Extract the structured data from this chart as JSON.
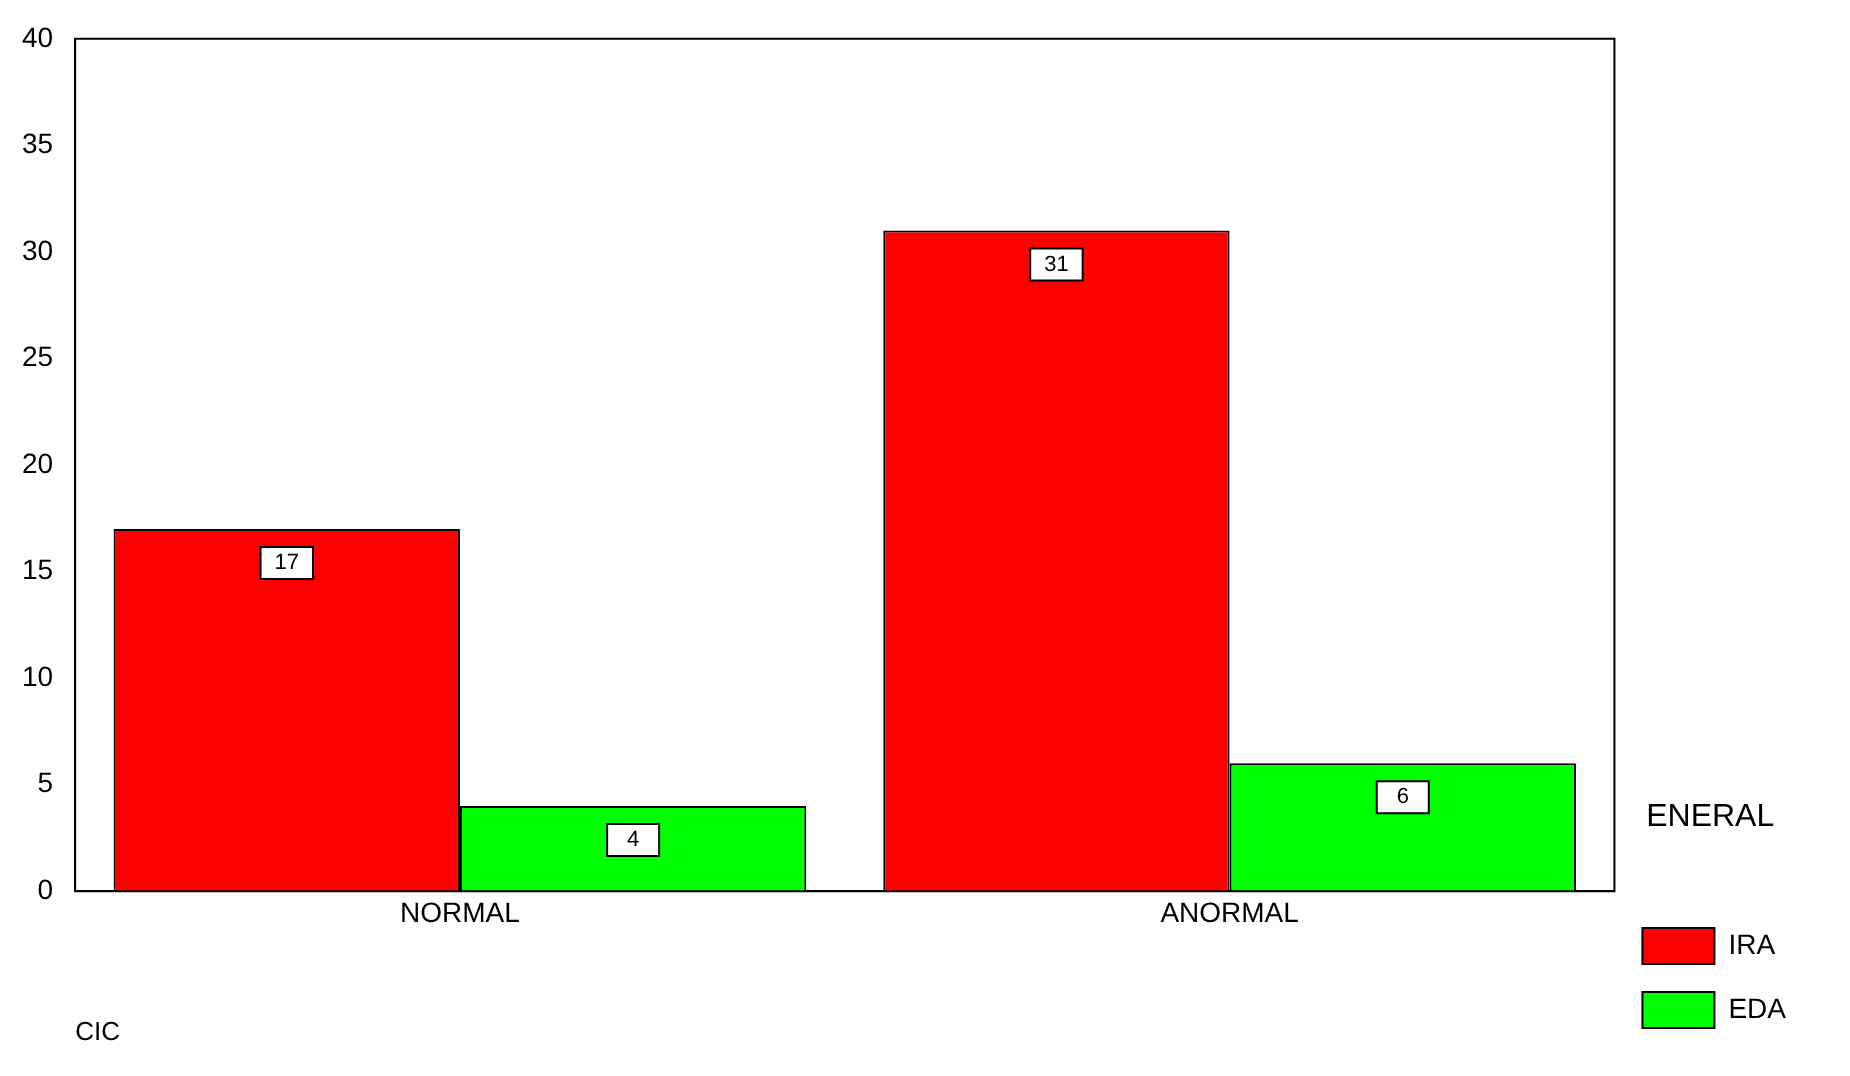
{
  "chart_data": {
    "type": "bar",
    "xlabel": "CIC",
    "legend_title": "ENERAL",
    "categories": [
      "NORMAL",
      "ANORMAL"
    ],
    "series": [
      {
        "name": "IRA",
        "color": "#ff0000",
        "values": [
          17,
          31
        ]
      },
      {
        "name": "EDA",
        "color": "#00ff00",
        "values": [
          4,
          6
        ]
      }
    ],
    "ylim": [
      0,
      40
    ],
    "yticks": [
      0,
      5,
      10,
      15,
      20,
      25,
      30,
      35,
      40
    ],
    "data_labels": true,
    "legend": "right",
    "grid": false
  }
}
